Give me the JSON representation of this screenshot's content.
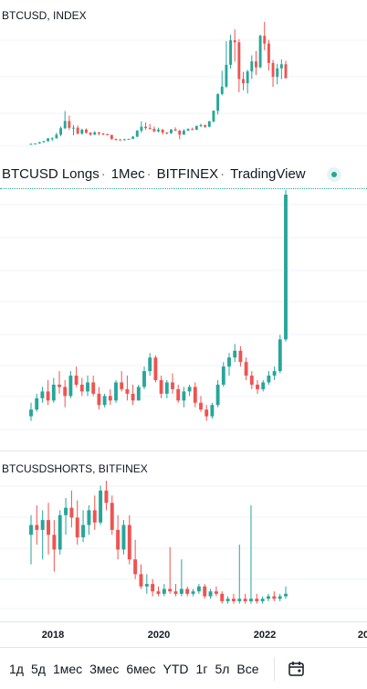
{
  "panes": {
    "top_title": "BTCUSD, INDEX",
    "bottom_title": "BTCUSDSHORTS, BITFINEX"
  },
  "legend": {
    "symbol": "BTCUSD Longs",
    "interval": "1Мес",
    "exchange": "BITFINEX",
    "provider": "TradingView"
  },
  "time_axis": {
    "ticks": [
      "2018",
      "2020",
      "2022",
      "20"
    ]
  },
  "range_buttons": [
    "1д",
    "5д",
    "1мес",
    "3мес",
    "6мес",
    "YTD",
    "1г",
    "5л",
    "Все"
  ],
  "icons": {
    "calendar": "calendar-icon",
    "status": "status-dot-icon"
  },
  "colors": {
    "up": "#26a69a",
    "down": "#ef5350",
    "grid": "#f0f3fa"
  },
  "chart_data": [
    {
      "type": "candlestick",
      "title": "BTCUSD, INDEX",
      "series": [
        {
          "name": "BTCUSD",
          "x": "month",
          "ohlc": [
            [
              1.0,
              1.5,
              0.9,
              1.3
            ],
            [
              1.3,
              1.6,
              1.2,
              1.5
            ],
            [
              1.5,
              2.4,
              1.4,
              2.2
            ],
            [
              2.2,
              3.0,
              2.0,
              2.8
            ],
            [
              2.8,
              4.6,
              2.6,
              4.3
            ],
            [
              4.3,
              5.0,
              3.0,
              4.4
            ],
            [
              4.4,
              7.5,
              4.2,
              6.4
            ],
            [
              6.4,
              11.0,
              5.5,
              10.0
            ],
            [
              10.0,
              19.5,
              9.5,
              14.0
            ],
            [
              14.0,
              17.0,
              9.0,
              10.2
            ],
            [
              10.2,
              11.7,
              6.0,
              10.3
            ],
            [
              10.3,
              11.5,
              6.5,
              7.0
            ],
            [
              7.0,
              9.7,
              6.4,
              9.2
            ],
            [
              9.2,
              9.9,
              7.0,
              7.5
            ],
            [
              7.5,
              7.8,
              5.8,
              6.4
            ],
            [
              6.4,
              8.4,
              6.2,
              7.7
            ],
            [
              7.7,
              7.8,
              6.0,
              7.0
            ],
            [
              7.0,
              7.4,
              6.1,
              6.6
            ],
            [
              6.6,
              7.0,
              6.2,
              6.3
            ],
            [
              6.3,
              6.4,
              3.5,
              4.0
            ],
            [
              4.0,
              4.3,
              3.2,
              3.7
            ],
            [
              3.7,
              4.1,
              3.4,
              3.4
            ],
            [
              3.4,
              4.2,
              3.4,
              3.8
            ],
            [
              3.8,
              4.1,
              3.7,
              4.1
            ],
            [
              4.1,
              5.6,
              4.0,
              5.3
            ],
            [
              5.3,
              9.0,
              5.0,
              8.6
            ],
            [
              8.6,
              13.8,
              7.5,
              10.8
            ],
            [
              10.8,
              13.2,
              9.1,
              10.1
            ],
            [
              10.1,
              12.3,
              9.3,
              9.6
            ],
            [
              9.6,
              10.9,
              7.7,
              8.3
            ],
            [
              8.3,
              10.3,
              7.6,
              9.2
            ],
            [
              9.2,
              9.5,
              6.5,
              7.6
            ],
            [
              7.6,
              7.8,
              6.5,
              7.2
            ],
            [
              7.2,
              9.5,
              6.9,
              9.3
            ],
            [
              9.3,
              10.5,
              8.5,
              8.6
            ],
            [
              8.6,
              9.2,
              3.8,
              6.4
            ],
            [
              6.4,
              9.5,
              6.3,
              8.6
            ],
            [
              8.6,
              10.0,
              8.6,
              9.5
            ],
            [
              9.5,
              10.4,
              8.9,
              9.1
            ],
            [
              9.1,
              11.4,
              9.0,
              11.3
            ],
            [
              11.3,
              12.5,
              10.6,
              11.7
            ],
            [
              11.7,
              12.0,
              10.1,
              10.8
            ],
            [
              10.8,
              14.1,
              10.5,
              13.8
            ],
            [
              13.8,
              19.9,
              13.1,
              19.7
            ],
            [
              19.7,
              29.3,
              17.6,
              29.0
            ],
            [
              29.0,
              41.9,
              28.2,
              33.1
            ],
            [
              33.1,
              58.3,
              32.3,
              45.2
            ],
            [
              45.2,
              61.8,
              43.0,
              58.8
            ],
            [
              58.8,
              64.8,
              47.0,
              57.7
            ],
            [
              57.7,
              59.5,
              30.0,
              37.3
            ],
            [
              37.3,
              41.3,
              31.0,
              35.0
            ],
            [
              35.0,
              42.4,
              29.3,
              41.5
            ],
            [
              41.5,
              50.5,
              37.3,
              47.1
            ],
            [
              47.1,
              52.9,
              39.6,
              43.8
            ],
            [
              43.8,
              62.0,
              43.3,
              61.3
            ],
            [
              61.3,
              69.0,
              53.3,
              57.0
            ],
            [
              57.0,
              59.1,
              42.0,
              46.2
            ],
            [
              46.2,
              47.9,
              32.9,
              38.5
            ],
            [
              38.5,
              45.8,
              34.3,
              43.2
            ],
            [
              43.2,
              48.2,
              37.2,
              45.5
            ],
            [
              45.5,
              47.4,
              37.7,
              37.7
            ]
          ]
        }
      ]
    },
    {
      "type": "candlestick",
      "title": "BTCUSD Longs · 1Мес · BITFINEX",
      "series": [
        {
          "name": "BTCUSD Longs",
          "x": "month",
          "ohlc": [
            [
              20,
              26,
              18,
              23
            ],
            [
              23,
              30,
              22,
              28
            ],
            [
              28,
              33,
              26,
              31
            ],
            [
              31,
              36,
              25,
              27
            ],
            [
              27,
              37,
              26,
              34
            ],
            [
              34,
              40,
              30,
              33
            ],
            [
              33,
              36,
              24,
              29
            ],
            [
              29,
              40,
              28,
              38
            ],
            [
              38,
              42,
              33,
              34
            ],
            [
              34,
              37,
              29,
              31
            ],
            [
              31,
              38,
              29,
              35
            ],
            [
              35,
              38,
              29,
              30
            ],
            [
              30,
              33,
              23,
              25
            ],
            [
              25,
              30,
              24,
              29
            ],
            [
              29,
              32,
              25,
              27
            ],
            [
              27,
              36,
              26,
              35
            ],
            [
              35,
              40,
              31,
              32
            ],
            [
              32,
              38,
              27,
              30
            ],
            [
              30,
              34,
              25,
              27
            ],
            [
              27,
              34,
              27,
              33
            ],
            [
              33,
              42,
              32,
              40
            ],
            [
              40,
              48,
              38,
              46
            ],
            [
              46,
              47,
              35,
              36
            ],
            [
              36,
              38,
              28,
              30
            ],
            [
              30,
              36,
              28,
              35
            ],
            [
              35,
              39,
              30,
              32
            ],
            [
              32,
              34,
              26,
              27
            ],
            [
              27,
              33,
              24,
              31
            ],
            [
              31,
              34,
              29,
              33
            ],
            [
              33,
              35,
              24,
              26
            ],
            [
              26,
              29,
              22,
              23
            ],
            [
              23,
              25,
              18,
              20
            ],
            [
              20,
              26,
              19,
              25
            ],
            [
              25,
              36,
              24,
              34
            ],
            [
              34,
              44,
              33,
              42
            ],
            [
              42,
              48,
              38,
              46
            ],
            [
              46,
              52,
              44,
              49
            ],
            [
              49,
              51,
              42,
              44
            ],
            [
              44,
              46,
              36,
              38
            ],
            [
              38,
              40,
              32,
              34
            ],
            [
              34,
              36,
              30,
              32
            ],
            [
              32,
              36,
              31,
              35
            ],
            [
              35,
              40,
              34,
              38
            ],
            [
              38,
              42,
              36,
              40
            ],
            [
              40,
              56,
              39,
              54
            ],
            [
              54,
              120,
              53,
              118
            ]
          ]
        }
      ]
    },
    {
      "type": "candlestick",
      "title": "BTCUSDSHORTS, BITFINEX",
      "series": [
        {
          "name": "BTCUSDSHORTS",
          "x": "month",
          "ohlc": [
            [
              30,
              38,
              18,
              34
            ],
            [
              34,
              42,
              26,
              32
            ],
            [
              32,
              40,
              20,
              36
            ],
            [
              36,
              43,
              22,
              30
            ],
            [
              30,
              36,
              15,
              24
            ],
            [
              24,
              40,
              22,
              38
            ],
            [
              38,
              45,
              30,
              41
            ],
            [
              41,
              48,
              33,
              37
            ],
            [
              37,
              44,
              26,
              29
            ],
            [
              29,
              40,
              27,
              34
            ],
            [
              34,
              42,
              30,
              40
            ],
            [
              40,
              46,
              32,
              35
            ],
            [
              35,
              50,
              34,
              48
            ],
            [
              48,
              52,
              40,
              43
            ],
            [
              43,
              46,
              30,
              32
            ],
            [
              32,
              38,
              20,
              24
            ],
            [
              24,
              36,
              22,
              34
            ],
            [
              34,
              38,
              18,
              20
            ],
            [
              20,
              28,
              12,
              14
            ],
            [
              14,
              18,
              8,
              9
            ],
            [
              9,
              14,
              6,
              10
            ],
            [
              10,
              12,
              5,
              7
            ],
            [
              7,
              9,
              5,
              6
            ],
            [
              6,
              10,
              5,
              8
            ],
            [
              8,
              25,
              6,
              7
            ],
            [
              7,
              10,
              5,
              6
            ],
            [
              6,
              20,
              5,
              8
            ],
            [
              8,
              9,
              5,
              6
            ],
            [
              6,
              8,
              5,
              7
            ],
            [
              7,
              10,
              6,
              9
            ],
            [
              9,
              10,
              4,
              5
            ],
            [
              5,
              8,
              4,
              7
            ],
            [
              7,
              9,
              5,
              6
            ],
            [
              6,
              7,
              2,
              3
            ],
            [
              3,
              5,
              2,
              4
            ],
            [
              4,
              6,
              2,
              3
            ],
            [
              3,
              26,
              2,
              4
            ],
            [
              4,
              6,
              2,
              3
            ],
            [
              3,
              42,
              2,
              4
            ],
            [
              4,
              6,
              2,
              3
            ],
            [
              3,
              5,
              2,
              4
            ],
            [
              4,
              6,
              3,
              5
            ],
            [
              5,
              7,
              3,
              4
            ],
            [
              4,
              6,
              3,
              5
            ],
            [
              5,
              9,
              4,
              6
            ]
          ]
        }
      ]
    }
  ]
}
